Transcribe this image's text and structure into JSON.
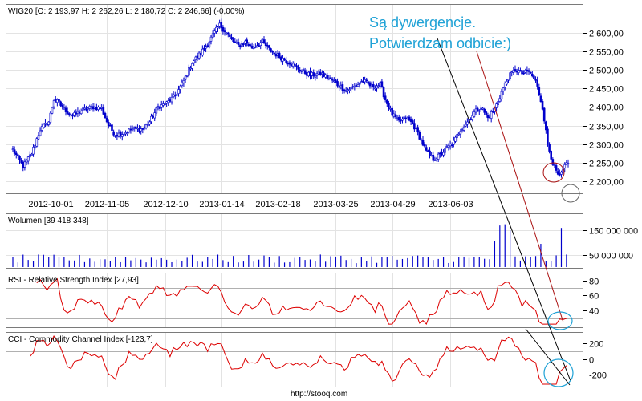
{
  "footer": "http://stooq.com",
  "annotation": {
    "line1": "Są dywergencje.",
    "line2": "Potwierdzam odbicie:)"
  },
  "colors": {
    "candles": "#0000cc",
    "volume": "#0000cc",
    "rsi": "#dd0000",
    "cci": "#dd0000",
    "annotation": "#1fa2d6",
    "trend_black": "#000000",
    "trend_red": "#aa1111"
  },
  "chart_data": [
    {
      "type": "candlestick",
      "title": "WIG20 [O: 2 193,97  H: 2 262,26  L: 2 180,72  C: 2 246,66] (-0,00%)",
      "x_tick_labels": [
        "2012-10-01",
        "2012-11-05",
        "2012-12-10",
        "2013-01-14",
        "2013-02-18",
        "2013-03-25",
        "2013-04-29",
        "2013-06-03"
      ],
      "y_tick_labels": [
        "2 600,00",
        "2 550,00",
        "2 500,00",
        "2 450,00",
        "2 400,00",
        "2 350,00",
        "2 300,00",
        "2 250,00",
        "2 200,00"
      ],
      "ylim": [
        2170,
        2640
      ],
      "close_anchors": [
        [
          0,
          2285
        ],
        [
          6,
          2240
        ],
        [
          11,
          2275
        ],
        [
          16,
          2340
        ],
        [
          21,
          2360
        ],
        [
          24,
          2420
        ],
        [
          27,
          2410
        ],
        [
          30,
          2395
        ],
        [
          35,
          2375
        ],
        [
          40,
          2390
        ],
        [
          47,
          2400
        ],
        [
          52,
          2395
        ],
        [
          56,
          2350
        ],
        [
          60,
          2325
        ],
        [
          65,
          2330
        ],
        [
          70,
          2340
        ],
        [
          76,
          2340
        ],
        [
          80,
          2360
        ],
        [
          85,
          2400
        ],
        [
          90,
          2410
        ],
        [
          95,
          2430
        ],
        [
          100,
          2470
        ],
        [
          105,
          2520
        ],
        [
          110,
          2545
        ],
        [
          114,
          2570
        ],
        [
          118,
          2600
        ],
        [
          121,
          2620
        ],
        [
          124,
          2605
        ],
        [
          128,
          2580
        ],
        [
          132,
          2565
        ],
        [
          136,
          2575
        ],
        [
          140,
          2560
        ],
        [
          146,
          2575
        ],
        [
          150,
          2555
        ],
        [
          156,
          2535
        ],
        [
          162,
          2520
        ],
        [
          168,
          2500
        ],
        [
          174,
          2485
        ],
        [
          180,
          2490
        ],
        [
          186,
          2475
        ],
        [
          190,
          2460
        ],
        [
          195,
          2445
        ],
        [
          200,
          2455
        ],
        [
          205,
          2470
        ],
        [
          210,
          2455
        ],
        [
          215,
          2460
        ],
        [
          218,
          2420
        ],
        [
          222,
          2380
        ],
        [
          226,
          2360
        ],
        [
          230,
          2370
        ],
        [
          234,
          2355
        ],
        [
          238,
          2320
        ],
        [
          242,
          2280
        ],
        [
          246,
          2260
        ],
        [
          250,
          2270
        ],
        [
          254,
          2290
        ],
        [
          258,
          2305
        ],
        [
          262,
          2340
        ],
        [
          266,
          2360
        ],
        [
          270,
          2385
        ],
        [
          274,
          2400
        ],
        [
          278,
          2370
        ],
        [
          282,
          2395
        ],
        [
          286,
          2440
        ],
        [
          290,
          2480
        ],
        [
          294,
          2500
        ],
        [
          298,
          2490
        ],
        [
          302,
          2495
        ],
        [
          306,
          2470
        ],
        [
          310,
          2400
        ],
        [
          313,
          2300
        ],
        [
          316,
          2250
        ],
        [
          318,
          2225
        ],
        [
          320,
          2210
        ],
        [
          323,
          2240
        ],
        [
          325,
          2247
        ]
      ]
    },
    {
      "type": "bar",
      "title": "Wolumen [39 418 348]",
      "y_tick_labels": [
        "150 000 000",
        "50 000 000"
      ],
      "ylim": [
        0,
        200000000
      ],
      "base_level": 32000000,
      "spikes": [
        {
          "index": 282,
          "value": 105000000
        },
        {
          "index": 285,
          "value": 170000000
        },
        {
          "index": 287,
          "value": 165000000
        },
        {
          "index": 289,
          "value": 175000000
        },
        {
          "index": 290,
          "value": 150000000
        },
        {
          "index": 310,
          "value": 95000000
        },
        {
          "index": 322,
          "value": 160000000
        }
      ]
    },
    {
      "type": "line",
      "title": "RSI - Relative Strength Index [27,93]",
      "y_tick_labels": [
        "80",
        "60",
        "40"
      ],
      "reference_levels": [
        70,
        30
      ],
      "ylim": [
        20,
        86
      ],
      "values_note_last": 27.93
    },
    {
      "type": "line",
      "title": "CCI - Commodity Channel Index [-123,7]",
      "y_tick_labels": [
        "200",
        "0",
        "-200"
      ],
      "reference_levels": [
        100,
        -100
      ],
      "ylim": [
        -330,
        300
      ]
    }
  ]
}
